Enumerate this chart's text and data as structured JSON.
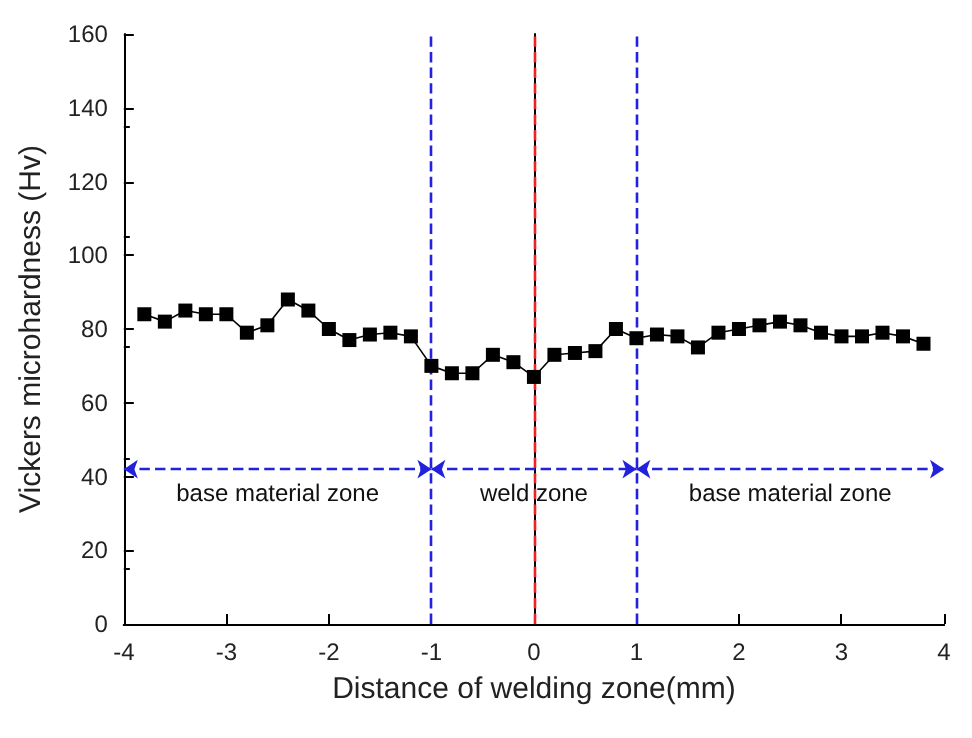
{
  "chart_data": {
    "type": "line",
    "xlabel": "Distance of welding zone(mm)",
    "ylabel": "Vickers microhardness (Hv)",
    "x": [
      -3.8,
      -3.6,
      -3.4,
      -3.2,
      -3.0,
      -2.8,
      -2.6,
      -2.4,
      -2.2,
      -2.0,
      -1.8,
      -1.6,
      -1.4,
      -1.2,
      -1.0,
      -0.8,
      -0.6,
      -0.4,
      -0.2,
      0.0,
      0.2,
      0.4,
      0.6,
      0.8,
      1.0,
      1.2,
      1.4,
      1.6,
      1.8,
      2.0,
      2.2,
      2.4,
      2.6,
      2.8,
      3.0,
      3.2,
      3.4,
      3.6,
      3.8
    ],
    "series": [
      {
        "color": "#000000",
        "values": [
          84,
          82,
          85,
          84,
          84,
          79,
          81,
          88,
          85,
          80,
          77,
          78.5,
          79,
          78,
          70,
          68,
          68,
          73,
          71,
          67,
          73,
          73.5,
          74,
          80,
          77.5,
          78.5,
          78,
          75,
          79,
          80,
          81,
          82,
          81,
          79,
          78,
          78,
          79,
          78,
          76
        ]
      }
    ],
    "xlim": [
      -4,
      4
    ],
    "xticks": [
      -4,
      -3,
      -2,
      -1,
      0,
      1,
      2,
      3,
      4
    ],
    "ylim": [
      0,
      160
    ],
    "yticks": [
      0,
      20,
      40,
      60,
      80,
      100,
      120,
      140,
      160
    ],
    "marker": "square",
    "line_style": "solid",
    "ref_lines": [
      {
        "axis": "x",
        "value": -1,
        "color": "#2222dd",
        "line_style": "dashed"
      },
      {
        "axis": "x",
        "value": 0,
        "color": "#ee2222",
        "line_style": "dashed"
      },
      {
        "axis": "x",
        "value": 1,
        "color": "#2222dd",
        "line_style": "dashed"
      }
    ],
    "annotations": [
      "base material zone",
      {
        "text": "weld zone",
        "x": 0,
        "y": 42
      },
      "base material zone"
    ]
  }
}
